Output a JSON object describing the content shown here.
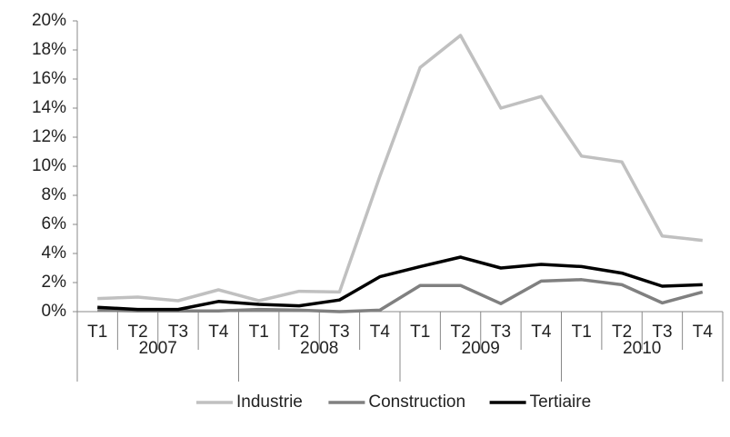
{
  "chart_data": {
    "type": "line",
    "categories": [
      "T1",
      "T2",
      "T3",
      "T4",
      "T1",
      "T2",
      "T3",
      "T4",
      "T1",
      "T2",
      "T3",
      "T4",
      "T1",
      "T2",
      "T3",
      "T4"
    ],
    "groups": [
      "2007",
      "2008",
      "2009",
      "2010"
    ],
    "series": [
      {
        "name": "Industrie",
        "color": "#c0c0c0",
        "values": [
          0.9,
          1.0,
          0.75,
          1.5,
          0.75,
          1.4,
          1.35,
          9.3,
          16.8,
          19.0,
          14.0,
          14.8,
          10.7,
          10.3,
          5.2,
          4.9
        ]
      },
      {
        "name": "Construction",
        "color": "#808080",
        "values": [
          0.1,
          0.05,
          0.05,
          0.05,
          0.15,
          0.1,
          0.0,
          0.1,
          1.8,
          1.8,
          0.55,
          2.1,
          2.2,
          1.85,
          0.6,
          1.35
        ]
      },
      {
        "name": "Tertiaire",
        "color": "#000000",
        "values": [
          0.3,
          0.15,
          0.15,
          0.7,
          0.5,
          0.4,
          0.8,
          2.4,
          3.1,
          3.75,
          3.0,
          3.25,
          3.1,
          2.65,
          1.75,
          1.85
        ]
      }
    ],
    "ylim": [
      0,
      20
    ],
    "yticks": [
      {
        "value": 0,
        "label": "0%"
      },
      {
        "value": 2,
        "label": "2%"
      },
      {
        "value": 4,
        "label": "4%"
      },
      {
        "value": 6,
        "label": "6%"
      },
      {
        "value": 8,
        "label": "8%"
      },
      {
        "value": 10,
        "label": "10%"
      },
      {
        "value": 12,
        "label": "12%"
      },
      {
        "value": 14,
        "label": "14%"
      },
      {
        "value": 16,
        "label": "16%"
      },
      {
        "value": 18,
        "label": "18%"
      },
      {
        "value": 20,
        "label": "20%"
      }
    ],
    "grid": false,
    "legend": "bottom"
  }
}
